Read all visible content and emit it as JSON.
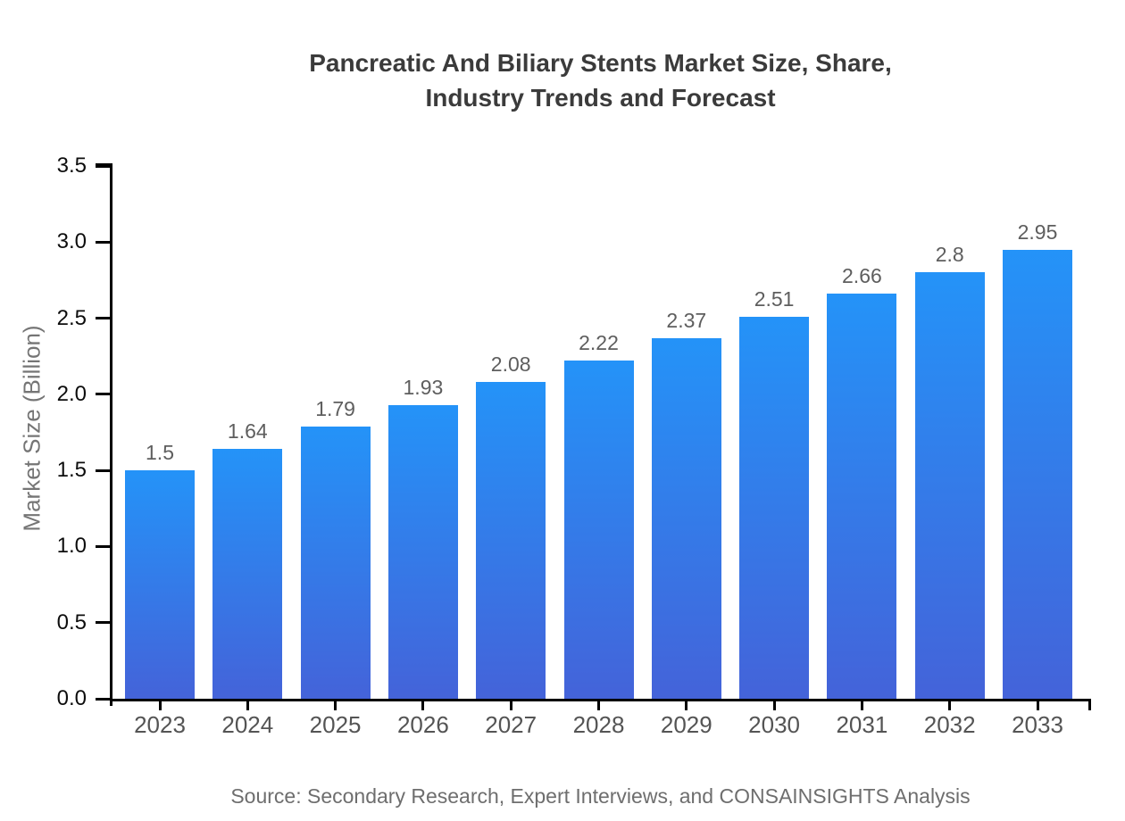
{
  "chart_data": {
    "type": "bar",
    "title": "Pancreatic And Biliary Stents Market Size, Share, Industry Trends and Forecast",
    "title_lines": [
      "Pancreatic And Biliary Stents Market Size, Share,",
      "Industry Trends and Forecast"
    ],
    "categories": [
      "2023",
      "2024",
      "2025",
      "2026",
      "2027",
      "2028",
      "2029",
      "2030",
      "2031",
      "2032",
      "2033"
    ],
    "values": [
      1.5,
      1.64,
      1.79,
      1.93,
      2.08,
      2.22,
      2.37,
      2.51,
      2.66,
      2.8,
      2.95
    ],
    "value_labels": [
      "1.5",
      "1.64",
      "1.79",
      "1.93",
      "2.08",
      "2.22",
      "2.37",
      "2.51",
      "2.66",
      "2.8",
      "2.95"
    ],
    "xlabel": "",
    "ylabel": "Market Size (Billion)",
    "ylim": [
      0,
      3.5
    ],
    "ytick_labels": [
      "0.0",
      "0.5",
      "1.0",
      "1.5",
      "2.0",
      "2.5",
      "3.0",
      "3.5"
    ],
    "grid": false,
    "legend_position": "none",
    "source_note": "Source: Secondary Research, Expert Interviews, and CONSAINSIGHTS Analysis",
    "colors": {
      "bar_gradient_top": "#2493f8",
      "bar_gradient_bottom": "#4463d9",
      "axis": "#000000",
      "title_text": "#3b3b3b",
      "axis_label_text": "#757575",
      "tick_label_text": "#0d0d0d",
      "category_label_text": "#545454",
      "value_label_text": "#5e5e5e",
      "source_text": "#6e6e6e",
      "background": "#ffffff"
    }
  }
}
